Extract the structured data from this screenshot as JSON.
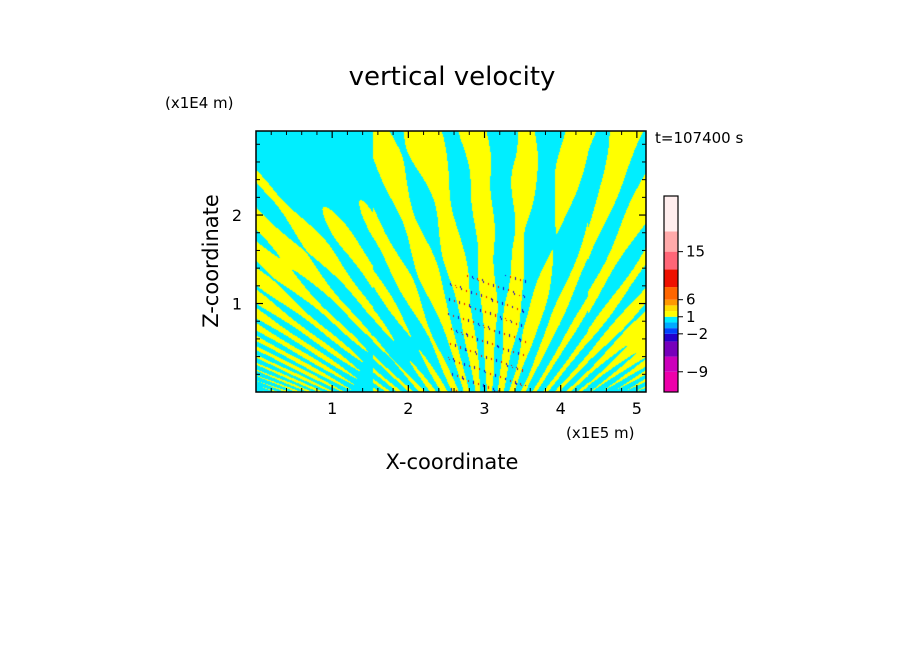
{
  "chart_data": {
    "type": "heatmap",
    "title": "vertical velocity",
    "xlabel": "X-coordinate",
    "ylabel": "Z-coordinate",
    "x_scale_label": "(x1E5 m)",
    "y_scale_label": "(x1E4 m)",
    "time_label": "t=107400 s",
    "xlim": [
      0,
      5.12
    ],
    "ylim": [
      0,
      2.95
    ],
    "x_ticks": [
      1,
      2,
      3,
      4,
      5
    ],
    "y_ticks": [
      1,
      2
    ],
    "x_tick_labels": [
      "1",
      "2",
      "3",
      "4",
      "5"
    ],
    "y_tick_labels": [
      "1",
      "2"
    ],
    "colorbar": {
      "levels": [
        -12,
        -9,
        -6,
        -3,
        -2,
        -1,
        0,
        1,
        2,
        3,
        6,
        9,
        12,
        15,
        18,
        27
      ],
      "colors": [
        "#ee00aa",
        "#cc00bb",
        "#7700bb",
        "#2200cc",
        "#0044ff",
        "#00aaff",
        "#00eeff",
        "#ffff00",
        "#ffdd00",
        "#ff9900",
        "#ff6600",
        "#ee1100",
        "#ff6677",
        "#ffaaaa",
        "#ffeeee"
      ],
      "tick_values": [
        15,
        6,
        1,
        -2,
        -9
      ],
      "tick_labels": [
        "15",
        "6",
        "1",
        "−2",
        "−9"
      ]
    },
    "field_colors": {
      "positive": "#ffff00",
      "negative": "#00eeff",
      "strong_positive": "#ee1100",
      "strong_negative": "#2200cc"
    }
  }
}
